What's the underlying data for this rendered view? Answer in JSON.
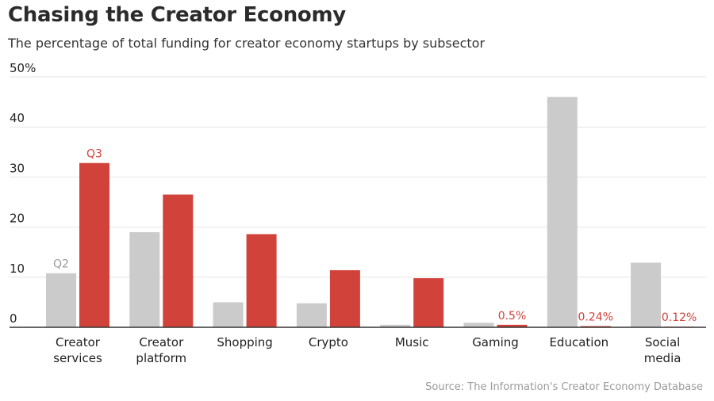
{
  "title": "Chasing the Creator Economy",
  "subtitle": "The percentage of total funding for creator economy startups by subsector",
  "source": "Source: The Information's Creator Economy Database",
  "colors": {
    "q2": "#cbcbcb",
    "q3": "#d1433a",
    "grid": "#e6e6e6",
    "axis": "#333333"
  },
  "chart_data": {
    "type": "bar",
    "categories": [
      [
        "Creator",
        "services"
      ],
      [
        "Creator",
        "platform"
      ],
      [
        "Shopping"
      ],
      [
        "Crypto"
      ],
      [
        "Music"
      ],
      [
        "Gaming"
      ],
      [
        "Education"
      ],
      [
        "Social",
        "media"
      ]
    ],
    "series": [
      {
        "name": "Q2",
        "values": [
          10.8,
          19.0,
          5.0,
          4.8,
          0.5,
          0.9,
          46.0,
          12.9
        ]
      },
      {
        "name": "Q3",
        "values": [
          32.8,
          26.5,
          18.6,
          11.4,
          9.8,
          0.5,
          0.24,
          0.12
        ]
      }
    ],
    "y_ticks": [
      "0",
      "10",
      "20",
      "30",
      "40",
      "50%"
    ],
    "ylim": [
      0,
      50
    ],
    "annotations": [
      {
        "text": "Q2",
        "series": 0,
        "index": 0
      },
      {
        "text": "Q3",
        "series": 1,
        "index": 0
      },
      {
        "text": "0.5%",
        "series": 1,
        "index": 5
      },
      {
        "text": "0.24%",
        "series": 1,
        "index": 6
      },
      {
        "text": "0.12%",
        "series": 1,
        "index": 7
      }
    ],
    "grid": true
  }
}
